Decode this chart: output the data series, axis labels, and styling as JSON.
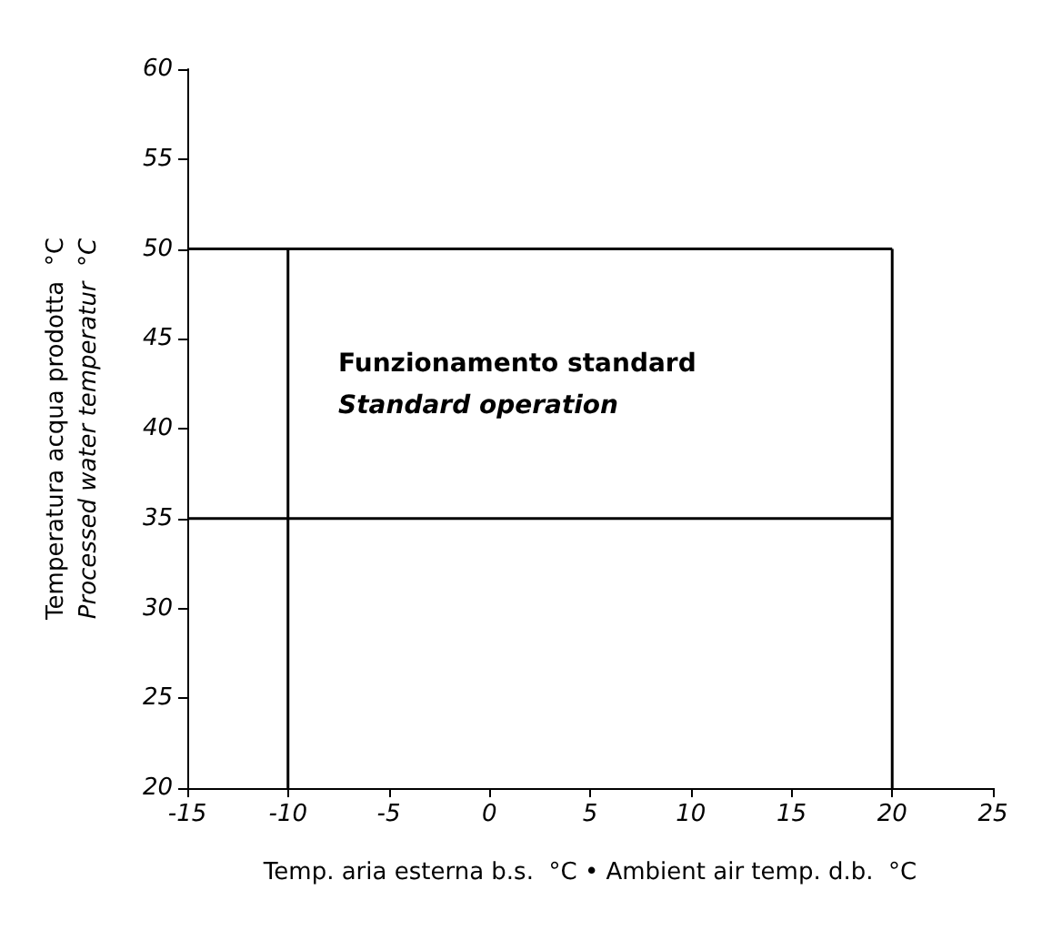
{
  "chart_data": {
    "type": "line",
    "xlabel": "Temp. aria esterna b.s.  °C • Ambient air temp. d.b.  °C",
    "ylabel": "Temperatura acqua prodotta  °C\nProcessed water temperatur  °C",
    "xlim": [
      -15,
      25
    ],
    "xticks": [
      -15,
      -10,
      -5,
      0,
      5,
      10,
      15,
      20,
      25
    ],
    "ylim": [
      20,
      60
    ],
    "yticks": [
      20,
      25,
      30,
      35,
      40,
      45,
      50,
      55,
      60
    ],
    "grid": false,
    "marker": "none",
    "line_style": "solid",
    "series": [
      {
        "color": "#000000",
        "x": [
          -15,
          20
        ],
        "values": [
          50,
          50
        ]
      },
      {
        "color": "#000000",
        "x": [
          -15,
          20
        ],
        "values": [
          35,
          35
        ]
      },
      {
        "color": "#000000",
        "x": [
          -10,
          -10
        ],
        "values": [
          20,
          50
        ]
      },
      {
        "color": "#000000",
        "x": [
          20,
          20
        ],
        "values": [
          20,
          50
        ]
      }
    ],
    "annotations": [
      "Funzionamento standard",
      "Standard operation"
    ]
  }
}
